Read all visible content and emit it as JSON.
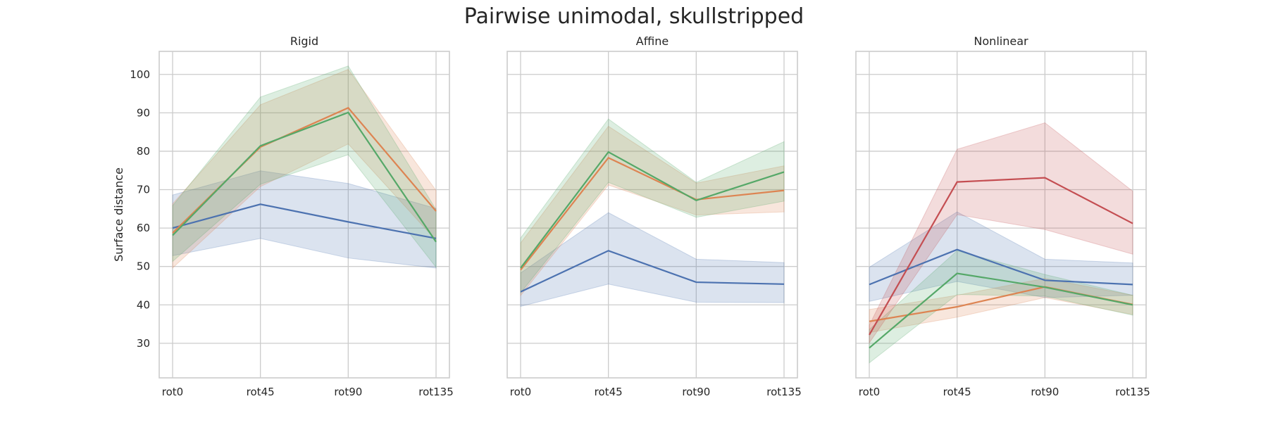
{
  "title": "Pairwise unimodal, skullstripped",
  "ylabel": "Surface distance",
  "colors": {
    "blue": "#4c72b0",
    "orange": "#dd8452",
    "green": "#55a868",
    "red": "#c44e52",
    "grid": "#cccccc",
    "frame": "#cccccc"
  },
  "chart_data": [
    {
      "type": "line",
      "title": "Rigid",
      "categories": [
        "rot0",
        "rot45",
        "rot90",
        "rot135"
      ],
      "ylim": [
        21,
        106
      ],
      "yticks": [
        30,
        40,
        50,
        60,
        70,
        80,
        90,
        100
      ],
      "ylabel": "Surface distance",
      "grid": true,
      "series": [
        {
          "color": "#4c72b0",
          "values": [
            60,
            66.2,
            61.6,
            57.3
          ],
          "lower": [
            52.8,
            57.3,
            52.2,
            49.6
          ],
          "upper": [
            68.6,
            74.9,
            71.6,
            65.1
          ]
        },
        {
          "color": "#dd8452",
          "values": [
            58.7,
            81.1,
            91.3,
            64.4
          ],
          "lower": [
            49.6,
            70.8,
            81.9,
            56.8
          ],
          "upper": [
            66.3,
            92.1,
            101.3,
            69.8
          ]
        },
        {
          "color": "#55a868",
          "values": [
            58.1,
            81.4,
            90.1,
            56.4
          ],
          "lower": [
            51.3,
            71.4,
            79.1,
            49.8
          ],
          "upper": [
            65.8,
            94.1,
            102.2,
            64.8
          ]
        }
      ]
    },
    {
      "type": "line",
      "title": "Affine",
      "categories": [
        "rot0",
        "rot45",
        "rot90",
        "rot135"
      ],
      "ylim": [
        21,
        106
      ],
      "yticks": [
        30,
        40,
        50,
        60,
        70,
        80,
        90,
        100
      ],
      "grid": true,
      "series": [
        {
          "color": "#4c72b0",
          "values": [
            43.4,
            54.1,
            45.9,
            45.4
          ],
          "lower": [
            39.6,
            45.4,
            40.7,
            40.6
          ],
          "upper": [
            48.3,
            64,
            51.9,
            51
          ]
        },
        {
          "color": "#dd8452",
          "values": [
            49.1,
            78.3,
            67.4,
            69.8
          ],
          "lower": [
            42.4,
            71.2,
            63.4,
            64.2
          ],
          "upper": [
            56.1,
            86.5,
            71.7,
            76.2
          ]
        },
        {
          "color": "#55a868",
          "values": [
            49.6,
            79.8,
            67.2,
            74.6
          ],
          "lower": [
            43.1,
            71.9,
            62.8,
            67
          ],
          "upper": [
            57.4,
            88.4,
            71.9,
            82.5
          ]
        }
      ]
    },
    {
      "type": "line",
      "title": "Nonlinear",
      "categories": [
        "rot0",
        "rot45",
        "rot90",
        "rot135"
      ],
      "ylim": [
        21,
        106
      ],
      "yticks": [
        30,
        40,
        50,
        60,
        70,
        80,
        90,
        100
      ],
      "grid": true,
      "series": [
        {
          "color": "#4c72b0",
          "values": [
            45.3,
            54.4,
            46.4,
            45.3
          ],
          "lower": [
            40.9,
            46.1,
            41.9,
            42.5
          ],
          "upper": [
            49.8,
            64.2,
            51.9,
            50.9
          ]
        },
        {
          "color": "#dd8452",
          "values": [
            35.7,
            39.5,
            44.7,
            40.1
          ],
          "lower": [
            32.8,
            36.8,
            41.9,
            37.5
          ],
          "upper": [
            38.8,
            42.5,
            46.9,
            42.5
          ]
        },
        {
          "color": "#55a868",
          "values": [
            28.8,
            48.2,
            44.6,
            40
          ],
          "lower": [
            24.9,
            42.7,
            42.3,
            37.3
          ],
          "upper": [
            33.6,
            54.1,
            47.9,
            42.5
          ]
        },
        {
          "color": "#c44e52",
          "values": [
            32.2,
            72,
            73.1,
            61.2
          ],
          "lower": [
            30.1,
            63.5,
            59.6,
            53.2
          ],
          "upper": [
            34.7,
            80.5,
            87.4,
            69.6
          ]
        }
      ]
    }
  ]
}
